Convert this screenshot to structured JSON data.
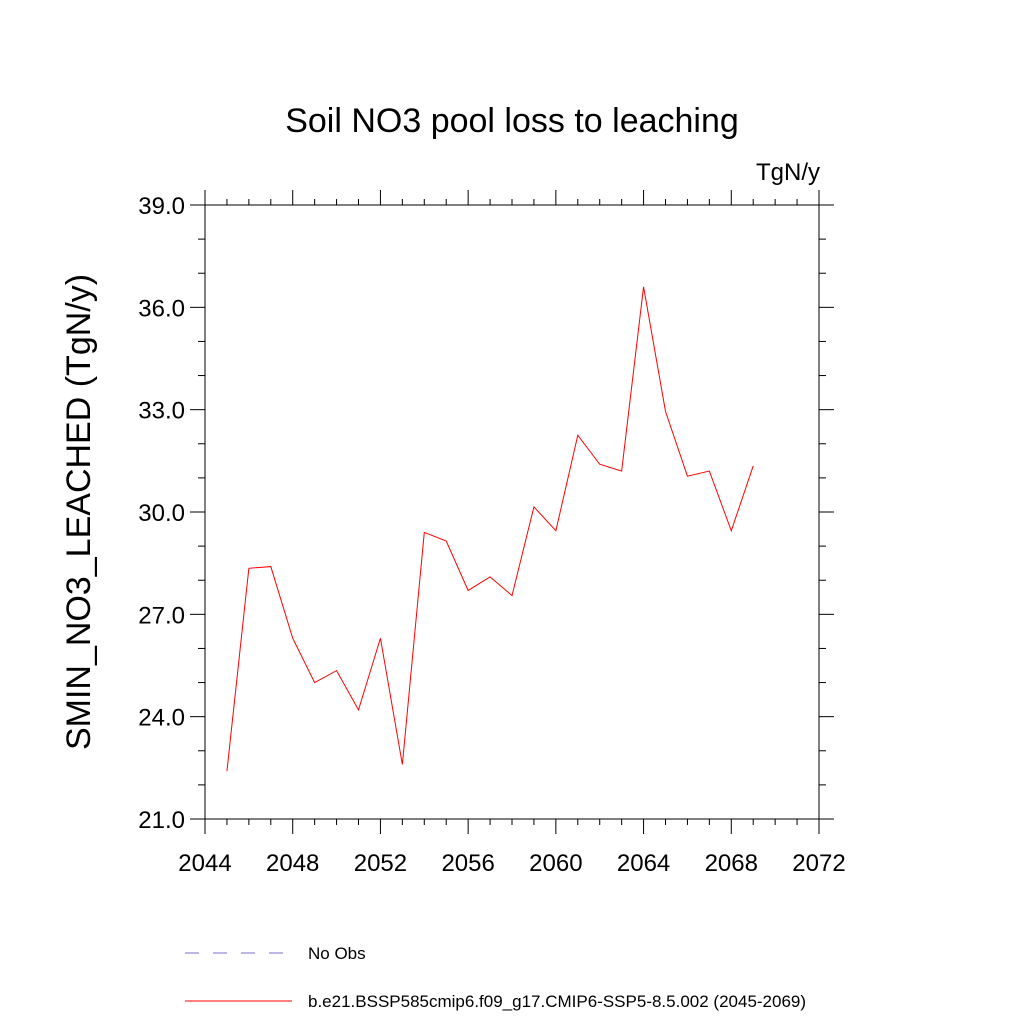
{
  "chart_data": {
    "type": "line",
    "title": "Soil NO3 pool loss to leaching",
    "units": "TgN/y",
    "ylabel": "SMIN_NO3_LEACHED  (TgN/y)",
    "xlabel": "",
    "xlim": [
      2044,
      2072
    ],
    "ylim": [
      21.0,
      39.0
    ],
    "x_ticks": [
      2044,
      2048,
      2052,
      2056,
      2060,
      2064,
      2068,
      2072
    ],
    "x_tick_labels": [
      "2044",
      "2048",
      "2052",
      "2056",
      "2060",
      "2064",
      "2068",
      "2072"
    ],
    "y_ticks": [
      21.0,
      24.0,
      27.0,
      30.0,
      33.0,
      36.0,
      39.0
    ],
    "y_tick_labels": [
      "21.0",
      "24.0",
      "27.0",
      "30.0",
      "33.0",
      "36.0",
      "39.0"
    ],
    "grid": false,
    "legend_position": "bottom",
    "series": [
      {
        "name": "No Obs",
        "color": "#7b6fd0",
        "dash": "dashed",
        "x": [],
        "y": []
      },
      {
        "name": "b.e21.BSSP585cmip6.f09_g17.CMIP6-SSP5-8.5.002 (2045-2069)",
        "color": "#ff0000",
        "dash": "solid",
        "x": [
          2045,
          2046,
          2047,
          2048,
          2049,
          2050,
          2051,
          2052,
          2053,
          2054,
          2055,
          2056,
          2057,
          2058,
          2059,
          2060,
          2061,
          2062,
          2063,
          2064,
          2065,
          2066,
          2067,
          2068,
          2069
        ],
        "y": [
          22.4,
          28.35,
          28.4,
          26.3,
          25.0,
          25.35,
          24.2,
          26.3,
          22.6,
          29.4,
          29.15,
          27.7,
          28.1,
          27.55,
          30.15,
          29.45,
          32.25,
          31.4,
          31.2,
          36.6,
          32.95,
          31.05,
          31.2,
          29.45,
          31.35
        ]
      }
    ]
  }
}
